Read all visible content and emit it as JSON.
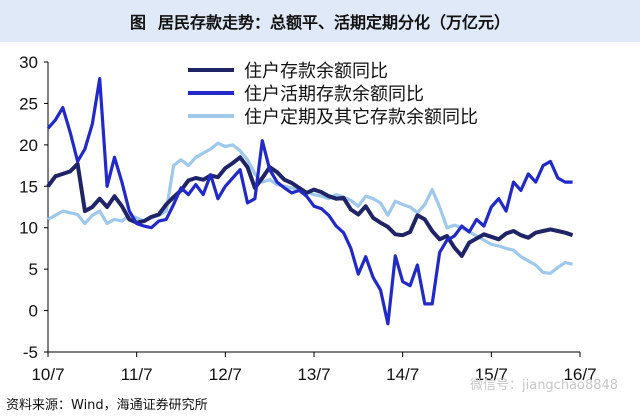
{
  "header": {
    "figure_label": "图",
    "title": "居民存款走势：总额平、活期定期分化（万亿元）"
  },
  "footer": {
    "source": "资料来源：Wind，海通证券研究所",
    "watermark": "微信号：jiangchao8848"
  },
  "colors": {
    "title_bg": "#dfe9f7",
    "total": "#1f2466",
    "demand": "#2229c9",
    "time": "#9ec8ec"
  },
  "chart_data": {
    "type": "line",
    "title": "居民存款走势：总额平、活期定期分化（万亿元）",
    "categories": [
      "10/7",
      "11/7",
      "12/7",
      "13/7",
      "14/7",
      "15/7",
      "16/7"
    ],
    "ylim": [
      -5,
      30
    ],
    "yticks": [
      -5,
      0,
      5,
      10,
      15,
      20,
      25,
      30
    ],
    "legend_position": "top-center",
    "series": [
      {
        "name": "住户存款余额同比",
        "values": [
          [
            0,
            15.0
          ],
          [
            1,
            16.2
          ],
          [
            2,
            16.5
          ],
          [
            3,
            16.8
          ],
          [
            4,
            17.7
          ],
          [
            5,
            12.0
          ],
          [
            6,
            12.5
          ],
          [
            7,
            13.5
          ],
          [
            8,
            12.5
          ],
          [
            9,
            13.8
          ],
          [
            10,
            12.6
          ],
          [
            11,
            11.0
          ],
          [
            12,
            10.6
          ],
          [
            13,
            10.8
          ],
          [
            14,
            11.3
          ],
          [
            15,
            11.6
          ],
          [
            16,
            12.8
          ],
          [
            17,
            13.7
          ],
          [
            18,
            14.5
          ],
          [
            19,
            15.7
          ],
          [
            20,
            16.0
          ],
          [
            21,
            15.8
          ],
          [
            22,
            16.3
          ],
          [
            23,
            16.1
          ],
          [
            24,
            17.2
          ],
          [
            25,
            17.8
          ],
          [
            26,
            18.5
          ],
          [
            27,
            17.3
          ],
          [
            28,
            14.8
          ],
          [
            29,
            16.0
          ],
          [
            30,
            17.3
          ],
          [
            31,
            16.7
          ],
          [
            32,
            15.8
          ],
          [
            33,
            15.4
          ],
          [
            34,
            14.8
          ],
          [
            35,
            14.2
          ],
          [
            36,
            14.6
          ],
          [
            37,
            14.3
          ],
          [
            38,
            13.8
          ],
          [
            39,
            13.5
          ],
          [
            40,
            13.6
          ],
          [
            41,
            12.2
          ],
          [
            42,
            11.6
          ],
          [
            43,
            12.6
          ],
          [
            44,
            11.2
          ],
          [
            45,
            10.6
          ],
          [
            46,
            10.1
          ],
          [
            47,
            9.2
          ],
          [
            48,
            9.1
          ],
          [
            49,
            9.5
          ],
          [
            50,
            11.5
          ],
          [
            51,
            11.0
          ],
          [
            52,
            9.6
          ],
          [
            53,
            8.6
          ],
          [
            54,
            9.0
          ],
          [
            55,
            7.6
          ],
          [
            56,
            6.6
          ],
          [
            57,
            8.2
          ],
          [
            58,
            8.7
          ],
          [
            59,
            9.2
          ],
          [
            60,
            8.9
          ],
          [
            61,
            8.6
          ],
          [
            62,
            9.3
          ],
          [
            63,
            9.6
          ],
          [
            64,
            9.1
          ],
          [
            65,
            8.8
          ],
          [
            66,
            9.4
          ],
          [
            67,
            9.6
          ],
          [
            68,
            9.8
          ],
          [
            69,
            9.6
          ],
          [
            70,
            9.4
          ],
          [
            71,
            9.1
          ]
        ]
      },
      {
        "name": "住户活期存款余额同比",
        "values": [
          [
            0,
            22.0
          ],
          [
            1,
            23.0
          ],
          [
            2,
            24.5
          ],
          [
            3,
            21.5
          ],
          [
            4,
            18.0
          ],
          [
            5,
            19.5
          ],
          [
            6,
            22.5
          ],
          [
            7,
            28.0
          ],
          [
            8,
            15.0
          ],
          [
            9,
            18.5
          ],
          [
            10,
            15.5
          ],
          [
            11,
            12.0
          ],
          [
            12,
            10.5
          ],
          [
            13,
            10.2
          ],
          [
            14,
            10.0
          ],
          [
            15,
            10.8
          ],
          [
            16,
            11.0
          ],
          [
            17,
            12.8
          ],
          [
            18,
            14.8
          ],
          [
            19,
            14.0
          ],
          [
            20,
            15.2
          ],
          [
            21,
            14.0
          ],
          [
            22,
            16.4
          ],
          [
            23,
            13.5
          ],
          [
            24,
            15.0
          ],
          [
            25,
            16.0
          ],
          [
            26,
            17.0
          ],
          [
            27,
            13.0
          ],
          [
            28,
            13.5
          ],
          [
            29,
            20.5
          ],
          [
            30,
            17.0
          ],
          [
            31,
            15.5
          ],
          [
            32,
            14.8
          ],
          [
            33,
            14.2
          ],
          [
            34,
            14.5
          ],
          [
            35,
            13.8
          ],
          [
            36,
            12.6
          ],
          [
            37,
            12.3
          ],
          [
            38,
            11.5
          ],
          [
            39,
            10.2
          ],
          [
            40,
            9.4
          ],
          [
            41,
            7.5
          ],
          [
            42,
            4.4
          ],
          [
            43,
            6.5
          ],
          [
            44,
            4.0
          ],
          [
            45,
            2.5
          ],
          [
            46,
            -1.6
          ],
          [
            47,
            6.6
          ],
          [
            48,
            3.5
          ],
          [
            49,
            3.0
          ],
          [
            50,
            5.5
          ],
          [
            51,
            0.8
          ],
          [
            52,
            0.8
          ],
          [
            53,
            7.0
          ],
          [
            54,
            8.5
          ],
          [
            55,
            9.0
          ],
          [
            56,
            10.2
          ],
          [
            57,
            9.5
          ],
          [
            58,
            11.0
          ],
          [
            59,
            10.2
          ],
          [
            60,
            12.5
          ],
          [
            61,
            13.5
          ],
          [
            62,
            12.0
          ],
          [
            63,
            15.5
          ],
          [
            64,
            14.5
          ],
          [
            65,
            16.5
          ],
          [
            66,
            15.5
          ],
          [
            67,
            17.5
          ],
          [
            68,
            18.0
          ],
          [
            69,
            16.0
          ],
          [
            70,
            15.5
          ],
          [
            71,
            15.5
          ]
        ]
      },
      {
        "name": "住户定期及其它存款余额同比",
        "values": [
          [
            0,
            11.0
          ],
          [
            1,
            11.5
          ],
          [
            2,
            12.0
          ],
          [
            3,
            11.8
          ],
          [
            4,
            11.6
          ],
          [
            5,
            10.5
          ],
          [
            6,
            11.5
          ],
          [
            7,
            12.0
          ],
          [
            8,
            10.5
          ],
          [
            9,
            11.0
          ],
          [
            10,
            10.8
          ],
          [
            11,
            11.5
          ],
          [
            12,
            11.2
          ],
          [
            13,
            10.8
          ],
          [
            14,
            11.2
          ],
          [
            15,
            11.5
          ],
          [
            16,
            12.0
          ],
          [
            17,
            17.5
          ],
          [
            18,
            18.2
          ],
          [
            19,
            17.5
          ],
          [
            20,
            18.5
          ],
          [
            21,
            19.0
          ],
          [
            22,
            19.5
          ],
          [
            23,
            20.2
          ],
          [
            24,
            19.8
          ],
          [
            25,
            20.0
          ],
          [
            26,
            19.3
          ],
          [
            27,
            18.2
          ],
          [
            28,
            16.5
          ],
          [
            29,
            15.5
          ],
          [
            30,
            15.8
          ],
          [
            31,
            15.2
          ],
          [
            32,
            15.0
          ],
          [
            33,
            14.8
          ],
          [
            34,
            14.6
          ],
          [
            35,
            14.3
          ],
          [
            36,
            14.0
          ],
          [
            37,
            13.8
          ],
          [
            38,
            13.5
          ],
          [
            39,
            14.0
          ],
          [
            40,
            13.7
          ],
          [
            41,
            13.3
          ],
          [
            42,
            12.6
          ],
          [
            43,
            13.8
          ],
          [
            44,
            13.5
          ],
          [
            45,
            13.0
          ],
          [
            46,
            11.5
          ],
          [
            47,
            13.2
          ],
          [
            48,
            12.8
          ],
          [
            49,
            12.5
          ],
          [
            50,
            11.8
          ],
          [
            51,
            12.8
          ],
          [
            52,
            14.6
          ],
          [
            53,
            12.5
          ],
          [
            54,
            10.0
          ],
          [
            55,
            10.3
          ],
          [
            56,
            10.0
          ],
          [
            57,
            9.5
          ],
          [
            58,
            9.0
          ],
          [
            59,
            8.5
          ],
          [
            60,
            8.0
          ],
          [
            61,
            7.8
          ],
          [
            62,
            7.5
          ],
          [
            63,
            7.3
          ],
          [
            64,
            6.5
          ],
          [
            65,
            6.0
          ],
          [
            66,
            5.5
          ],
          [
            67,
            4.6
          ],
          [
            68,
            4.5
          ],
          [
            69,
            5.2
          ],
          [
            70,
            5.8
          ],
          [
            71,
            5.6
          ]
        ]
      }
    ]
  }
}
